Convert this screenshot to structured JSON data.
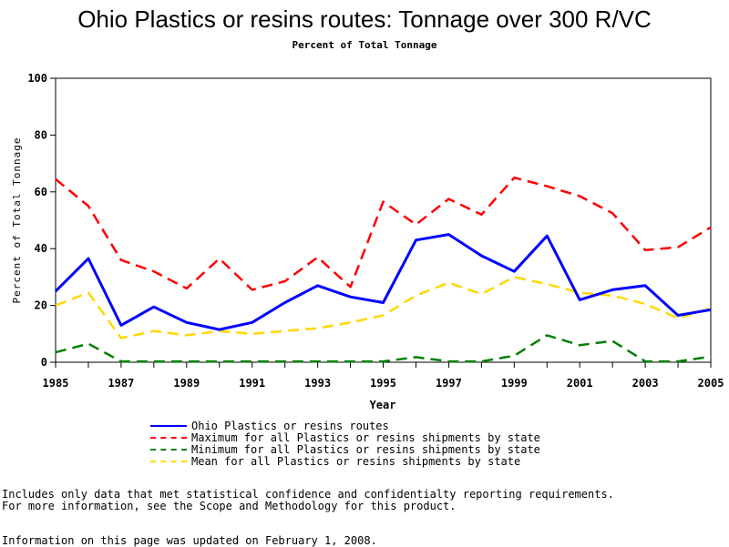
{
  "chart_data": {
    "type": "line",
    "title": "Ohio Plastics or resins routes: Tonnage over 300 R/VC",
    "subtitle": "Percent of Total Tonnage",
    "xlabel": "Year",
    "ylabel": "Percent of Total Tonnage",
    "xlim": [
      1985,
      2005
    ],
    "ylim": [
      0,
      100
    ],
    "x_ticks": [
      "1985",
      "1987",
      "1989",
      "1991",
      "1993",
      "1995",
      "1997",
      "1999",
      "2001",
      "2003",
      "2005"
    ],
    "y_ticks": [
      "0",
      "20",
      "40",
      "60",
      "80",
      "100"
    ],
    "grid": false,
    "legend_position": "bottom",
    "x": [
      1985,
      1986,
      1987,
      1988,
      1989,
      1990,
      1991,
      1992,
      1993,
      1994,
      1995,
      1996,
      1997,
      1998,
      1999,
      2000,
      2001,
      2002,
      2003,
      2004,
      2005
    ],
    "series": [
      {
        "name": "Ohio Plastics or resins routes",
        "color": "#0000ff",
        "style": "solid",
        "values": [
          25,
          36.5,
          13,
          19.5,
          14,
          11.5,
          14,
          21,
          27,
          23,
          21,
          43,
          45,
          37.5,
          32,
          44.5,
          22,
          25.5,
          27,
          16.5,
          18.5
        ]
      },
      {
        "name": "Maximum for all Plastics or resins shipments by state",
        "color": "#ff0000",
        "style": "dashed",
        "values": [
          64.5,
          55,
          36,
          32,
          26,
          36.5,
          25.5,
          28.5,
          37,
          26.5,
          56.5,
          48.5,
          57.5,
          52,
          65,
          62,
          58.5,
          52.5,
          39.5,
          40.5,
          47.5
        ]
      },
      {
        "name": "Minimum for all Plastics or resins shipments by state",
        "color": "#008000",
        "style": "dashed",
        "values": [
          3.5,
          6.5,
          0.3,
          0.3,
          0.3,
          0.3,
          0.3,
          0.3,
          0.3,
          0.3,
          0.3,
          1.8,
          0.3,
          0.3,
          2.3,
          9.5,
          6,
          7.5,
          0.3,
          0.3,
          2
        ]
      },
      {
        "name": "Mean for all Plastics or resins shipments by state",
        "color": "#ffd700",
        "style": "dashed",
        "values": [
          20,
          24.5,
          8.5,
          11,
          9.5,
          11,
          10,
          11,
          12,
          14,
          16.5,
          23.5,
          28,
          24,
          30,
          27.5,
          24.5,
          23.5,
          20.5,
          15.5,
          19
        ]
      }
    ]
  },
  "notes": {
    "line1": "Includes only data that met statistical confidence and confidentialty reporting requirements.",
    "line2": "For more information, see the Scope and Methodology for this product.",
    "line3": "Information on this page was updated on February 1, 2008."
  }
}
